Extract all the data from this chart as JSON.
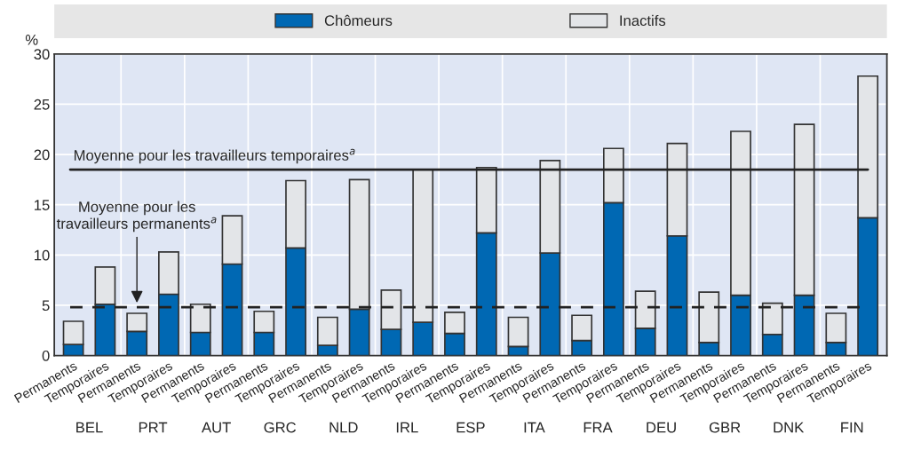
{
  "chart_data": {
    "type": "bar",
    "stacked": true,
    "ylabel": "%",
    "categories": [
      "Permanents",
      "Temporaires",
      "Permanents",
      "Temporaires",
      "Permanents",
      "Temporaires",
      "Permanents",
      "Temporaires",
      "Permanents",
      "Temporaires",
      "Permanents",
      "Temporaires",
      "Permanents",
      "Temporaires",
      "Permanents",
      "Temporaires",
      "Permanents",
      "Temporaires",
      "Permanents",
      "Temporaires",
      "Permanents",
      "Temporaires",
      "Permanents",
      "Temporaires",
      "Permanents",
      "Temporaires"
    ],
    "series": [
      {
        "name": "Chômeurs",
        "color": "#0068b3",
        "values": [
          1.1,
          5.1,
          2.4,
          6.1,
          2.3,
          9.1,
          2.3,
          10.7,
          1.0,
          4.6,
          2.6,
          3.3,
          2.2,
          12.2,
          0.9,
          10.2,
          1.5,
          15.2,
          2.7,
          11.9,
          1.3,
          6.0,
          2.1,
          6.0,
          1.3,
          13.7
        ]
      },
      {
        "name": "Inactifs",
        "color": "#e3e5e8",
        "values": [
          2.3,
          3.7,
          1.8,
          4.2,
          2.8,
          4.8,
          2.1,
          6.7,
          2.8,
          12.9,
          3.9,
          15.2,
          2.1,
          6.5,
          2.9,
          9.2,
          2.5,
          5.4,
          3.7,
          9.2,
          5.0,
          16.3,
          3.1,
          17.0,
          2.9,
          14.1
        ]
      }
    ],
    "ylim": [
      0,
      30
    ],
    "yticks": [
      0,
      5,
      10,
      15,
      20,
      25,
      30
    ],
    "grid": true,
    "legend": "top",
    "ref_lines": [
      {
        "axis": "y",
        "value": 18.5,
        "label": "Moyenne pour les travailleurs temporaires$^{a}$",
        "color": "#222222",
        "line_style": "solid"
      },
      {
        "axis": "y",
        "value": 4.8,
        "label": "Moyenne pour les\ntravailleurs permanents$^{a}$",
        "color": "#222222",
        "line_style": "dashed"
      }
    ],
    "annotations": [
      "BEL",
      "PRT",
      "AUT",
      "GRC",
      "NLD",
      "IRL",
      "ESP",
      "ITA",
      "FRA",
      "DEU",
      "GBR",
      "DNK",
      "FIN"
    ]
  }
}
